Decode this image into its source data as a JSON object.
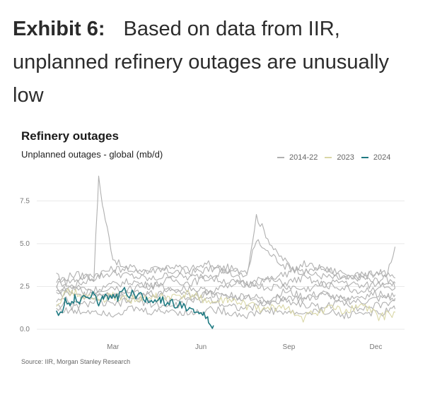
{
  "headline": {
    "label": "Exhibit 6:",
    "text": "Based on data from IIR, unplanned refinery outages are unusually low"
  },
  "chart_data": {
    "type": "line",
    "title": "Refinery outages",
    "subtitle": "Unplanned outages - global (mb/d)",
    "source": "Source: IIR, Morgan Stanley Research",
    "xlabel": "",
    "ylabel": "",
    "ylim": [
      0,
      9
    ],
    "y_ticks": [
      0.0,
      2.5,
      5.0,
      7.5
    ],
    "y_tick_labels": [
      "0.0",
      "2.5",
      "5.0",
      "7.5"
    ],
    "x_range_day_of_year": [
      1,
      365
    ],
    "x_ticks": [
      {
        "label": "Mar",
        "day": 60
      },
      {
        "label": "Jun",
        "day": 152
      },
      {
        "label": "Sep",
        "day": 244
      },
      {
        "label": "Dec",
        "day": 335
      }
    ],
    "legend": [
      {
        "name": "2014-22",
        "color": "#b0b0b0"
      },
      {
        "name": "2023",
        "color": "#d9d7a6"
      },
      {
        "name": "2024",
        "color": "#1f7a82"
      }
    ],
    "series": [
      {
        "name": "2014-22",
        "group": "2014-22",
        "color": "#b0b0b0",
        "x": [
          1,
          15,
          30,
          40,
          45,
          50,
          60,
          70,
          80,
          90,
          100,
          120,
          140,
          160,
          180,
          200,
          210,
          230,
          250,
          270,
          290,
          310,
          320,
          330,
          345,
          355
        ],
        "y": [
          3.1,
          2.5,
          2.8,
          3.0,
          8.8,
          7.0,
          4.2,
          3.6,
          3.4,
          3.3,
          3.5,
          3.4,
          3.3,
          3.5,
          3.6,
          3.2,
          6.6,
          4.5,
          3.5,
          3.2,
          3.0,
          2.9,
          3.1,
          2.8,
          3.0,
          4.8
        ]
      },
      {
        "name": "2014-22",
        "group": "2014-22",
        "color": "#b0b0b0",
        "x": [
          1,
          20,
          40,
          60,
          80,
          100,
          120,
          140,
          160,
          180,
          200,
          210,
          220,
          240,
          260,
          280,
          300,
          320,
          340,
          355
        ],
        "y": [
          2.6,
          2.9,
          3.2,
          3.5,
          3.6,
          3.4,
          3.7,
          3.5,
          3.8,
          3.4,
          3.3,
          5.2,
          4.6,
          3.7,
          3.4,
          3.5,
          3.1,
          3.2,
          3.3,
          3.0
        ]
      },
      {
        "name": "2014-22",
        "group": "2014-22",
        "color": "#b0b0b0",
        "x": [
          1,
          20,
          40,
          60,
          80,
          100,
          120,
          140,
          160,
          180,
          200,
          220,
          240,
          260,
          280,
          300,
          320,
          340,
          355
        ],
        "y": [
          2.8,
          3.2,
          3.0,
          3.3,
          3.1,
          2.9,
          3.2,
          3.0,
          3.2,
          3.4,
          2.6,
          3.0,
          3.2,
          3.8,
          3.5,
          3.3,
          3.0,
          3.4,
          2.4
        ]
      },
      {
        "name": "2014-22",
        "group": "2014-22",
        "color": "#b0b0b0",
        "x": [
          1,
          20,
          40,
          60,
          80,
          100,
          120,
          140,
          160,
          180,
          200,
          220,
          240,
          260,
          280,
          300,
          320,
          340,
          355
        ],
        "y": [
          2.2,
          2.5,
          2.3,
          2.6,
          2.8,
          2.5,
          2.9,
          2.7,
          3.0,
          2.8,
          2.6,
          2.9,
          2.7,
          3.0,
          2.6,
          2.8,
          2.5,
          2.7,
          2.4
        ]
      },
      {
        "name": "2014-22",
        "group": "2014-22",
        "color": "#b0b0b0",
        "x": [
          1,
          20,
          40,
          60,
          80,
          100,
          120,
          140,
          160,
          180,
          200,
          220,
          240,
          260,
          280,
          300,
          320,
          340,
          355
        ],
        "y": [
          2.0,
          2.3,
          2.1,
          2.0,
          2.4,
          2.6,
          2.3,
          2.4,
          2.2,
          2.5,
          2.7,
          2.4,
          2.5,
          2.3,
          2.6,
          2.4,
          2.2,
          2.5,
          2.7
        ]
      },
      {
        "name": "2014-22",
        "group": "2014-22",
        "color": "#b0b0b0",
        "x": [
          1,
          20,
          40,
          60,
          80,
          100,
          120,
          140,
          160,
          180,
          200,
          220,
          240,
          260,
          280,
          300,
          320,
          340,
          355
        ],
        "y": [
          1.8,
          1.6,
          1.9,
          2.0,
          1.8,
          2.1,
          1.7,
          1.9,
          2.2,
          2.0,
          1.8,
          1.6,
          1.9,
          1.7,
          2.0,
          1.8,
          1.9,
          2.1,
          1.8
        ]
      },
      {
        "name": "2014-22",
        "group": "2014-22",
        "color": "#b0b0b0",
        "x": [
          1,
          20,
          40,
          60,
          80,
          100,
          120,
          140,
          160,
          180,
          200,
          220,
          240,
          260,
          280,
          300,
          320,
          340,
          355
        ],
        "y": [
          1.5,
          1.3,
          1.6,
          1.4,
          1.7,
          1.5,
          1.3,
          1.6,
          1.8,
          1.4,
          1.2,
          1.5,
          1.7,
          1.4,
          1.3,
          1.6,
          1.2,
          1.4,
          1.7
        ]
      },
      {
        "name": "2014-22",
        "group": "2014-22",
        "color": "#b0b0b0",
        "x": [
          1,
          20,
          40,
          60,
          80,
          100,
          120,
          140,
          160,
          180,
          200,
          220,
          240,
          260,
          280,
          300,
          320,
          340,
          355
        ],
        "y": [
          1.2,
          1.0,
          1.1,
          0.9,
          1.2,
          1.0,
          1.1,
          0.9,
          1.2,
          1.0,
          0.8,
          1.1,
          1.0,
          0.9,
          1.1,
          0.8,
          1.0,
          0.9,
          1.2
        ]
      },
      {
        "name": "2014-22",
        "group": "2014-22",
        "color": "#b0b0b0",
        "x": [
          1,
          20,
          40,
          60,
          80,
          100,
          120,
          140,
          160,
          180,
          200,
          220,
          240,
          260,
          280,
          300,
          320,
          340,
          355
        ],
        "y": [
          2.4,
          1.9,
          2.2,
          2.5,
          2.1,
          2.0,
          2.3,
          1.9,
          2.1,
          1.8,
          2.0,
          1.7,
          2.2,
          1.9,
          2.1,
          1.7,
          1.6,
          1.8,
          2.0
        ]
      },
      {
        "name": "2023",
        "group": "2023",
        "color": "#d9d7a6",
        "x": [
          1,
          15,
          30,
          45,
          60,
          75,
          90,
          105,
          120,
          135,
          150,
          165,
          180,
          200,
          220,
          240,
          255,
          270,
          285,
          300,
          320,
          340,
          355
        ],
        "y": [
          1.6,
          2.2,
          1.9,
          1.7,
          1.9,
          1.8,
          1.7,
          1.9,
          1.8,
          2.0,
          1.9,
          1.5,
          1.7,
          1.4,
          1.1,
          1.4,
          0.6,
          0.9,
          1.3,
          1.0,
          1.4,
          0.7,
          1.0
        ]
      },
      {
        "name": "2024",
        "group": "2024",
        "color": "#1f7a82",
        "x": [
          1,
          5,
          10,
          15,
          20,
          25,
          30,
          35,
          40,
          45,
          50,
          55,
          60,
          65,
          70,
          75,
          80,
          85,
          90,
          95,
          100,
          105,
          110,
          115,
          120,
          125,
          130,
          135,
          140,
          145,
          150,
          155,
          160,
          165
        ],
        "y": [
          1.2,
          0.9,
          1.7,
          1.3,
          1.9,
          1.5,
          2.1,
          1.8,
          2.0,
          1.6,
          1.9,
          1.7,
          2.1,
          1.8,
          2.3,
          2.0,
          2.2,
          1.9,
          2.1,
          1.7,
          1.9,
          1.5,
          1.8,
          1.4,
          1.7,
          1.3,
          1.5,
          1.2,
          1.4,
          1.1,
          1.0,
          0.8,
          0.5,
          0.2
        ]
      }
    ]
  }
}
